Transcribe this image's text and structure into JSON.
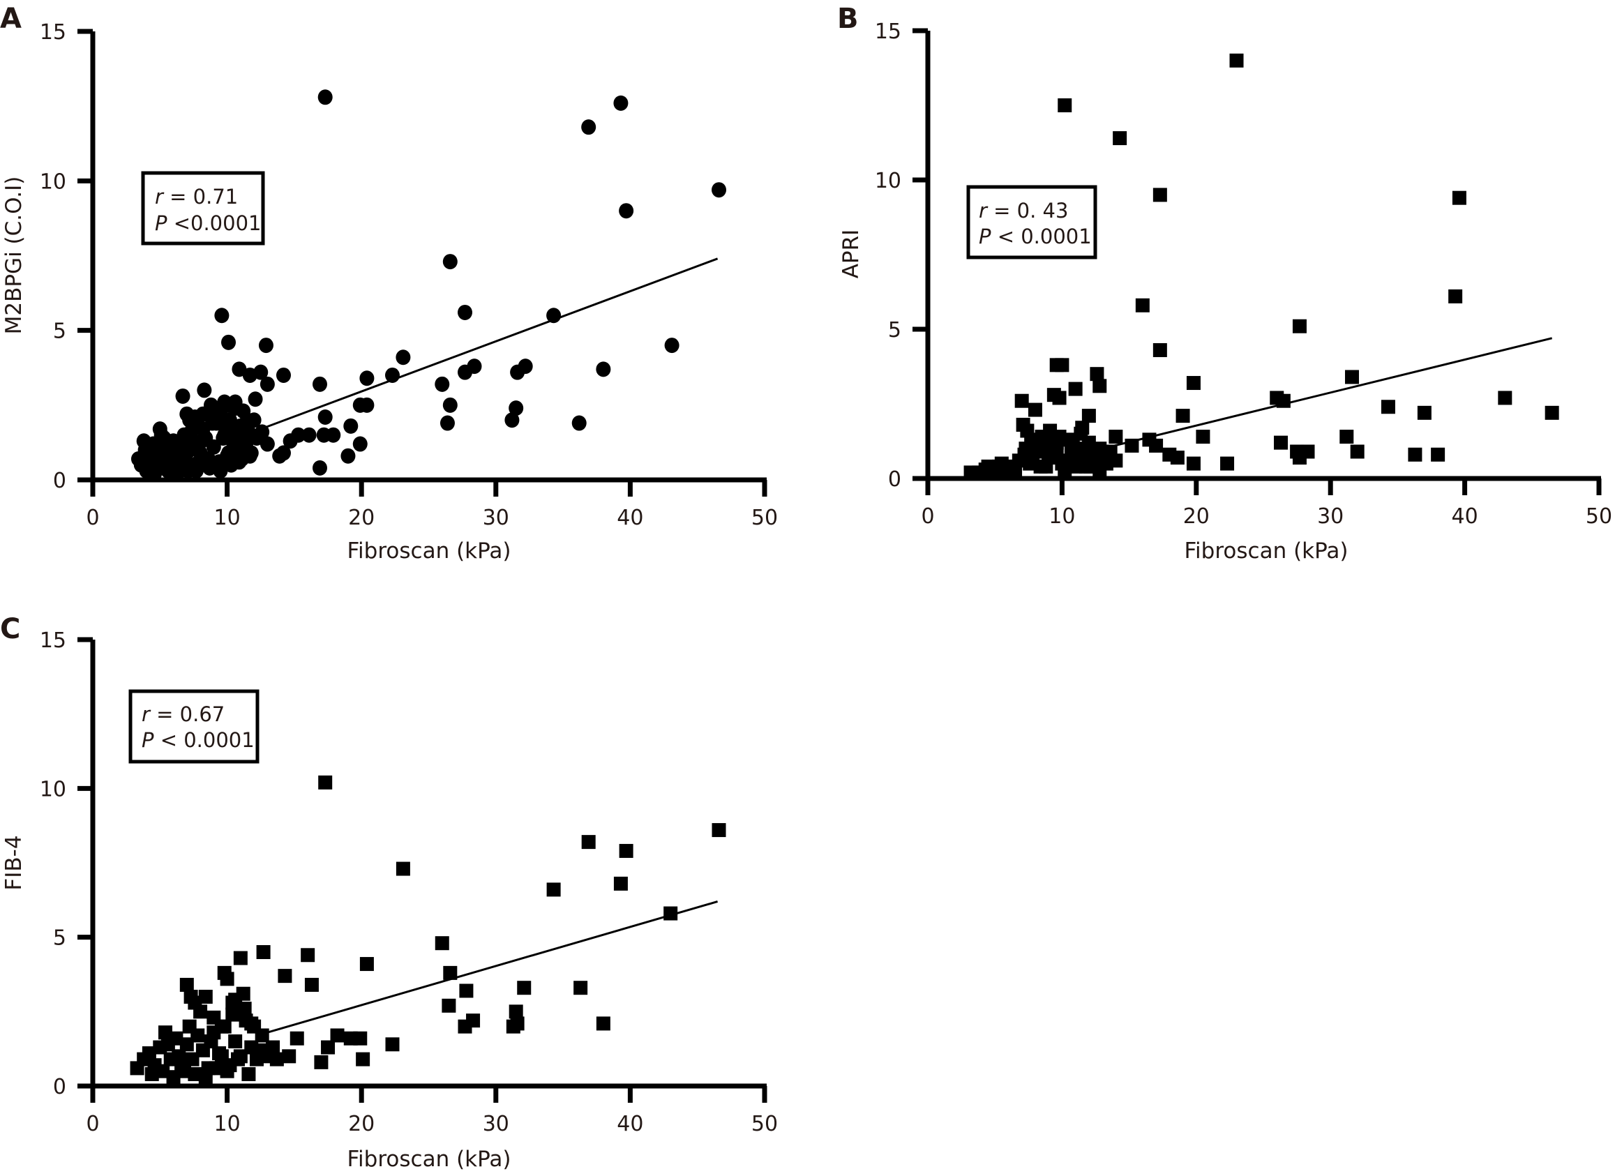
{
  "chart_data": [
    {
      "panel": "A",
      "type": "scatter",
      "marker": "circle",
      "title": "",
      "xlabel": "Fibroscan (kPa)",
      "ylabel": "M2BPGi (C.O.I)",
      "xlim": [
        0,
        50
      ],
      "ylim": [
        0,
        15
      ],
      "xticks": [
        0,
        10,
        20,
        30,
        40,
        50
      ],
      "yticks": [
        0,
        5,
        10,
        15
      ],
      "grid": false,
      "annotation": {
        "r_label": "r",
        "r_text": "= 0.71",
        "p_label": "P",
        "p_text": "<0.0001"
      },
      "annotation_placement": "top-left",
      "regression": {
        "x": [
          12.5,
          46.5
        ],
        "y": [
          1.7,
          7.4
        ]
      },
      "x": [
        17.3,
        36.9,
        39.3,
        46.6,
        39.7,
        26.6,
        27.7,
        34.3,
        43.1,
        38.0,
        9.6,
        10.1,
        12.9,
        23.1,
        32.2,
        28.4,
        31.6,
        27.7,
        26.0,
        22.3,
        20.4,
        20.4,
        19.9,
        31.5,
        31.2,
        26.6,
        26.4,
        36.2,
        16.9,
        17.3,
        16.9,
        19.0,
        19.9,
        19.2,
        17.9,
        17.2,
        16.1,
        15.3,
        14.7,
        14.2,
        13.9,
        13.0,
        14.2,
        13.0,
        12.5,
        11.7,
        10.9,
        9.8,
        12.1,
        3.4,
        3.6,
        3.9,
        4.1,
        4.3,
        4.5,
        4.7,
        4.9,
        5.0,
        5.2,
        5.4,
        5.6,
        5.8,
        6.0,
        6.2,
        6.4,
        6.6,
        6.8,
        7.0,
        7.2,
        7.4,
        7.6,
        7.8,
        8.0,
        8.2,
        8.4,
        8.6,
        8.8,
        9.0,
        9.2,
        9.4,
        9.6,
        9.8,
        10.0,
        10.2,
        10.4,
        10.6,
        10.8,
        11.0,
        11.2,
        11.4,
        11.6,
        11.8,
        12.0,
        12.2,
        12.6,
        4.0,
        4.4,
        4.8,
        5.3,
        5.7,
        6.1,
        6.5,
        6.9,
        7.3,
        7.7,
        8.1,
        8.5,
        8.9,
        9.3,
        9.7,
        10.1,
        10.5,
        10.9,
        11.3,
        11.7,
        3.8,
        4.6,
        5.5,
        6.3,
        7.1,
        7.9,
        8.7,
        9.5,
        10.3,
        11.1,
        5.1,
        6.7,
        7.5,
        8.3,
        9.1,
        9.9,
        10.7,
        11.5,
        7.0,
        7.6,
        8.2,
        8.8,
        9.4,
        10.0,
        10.6
      ],
      "y": [
        12.8,
        11.8,
        12.6,
        9.7,
        9.0,
        7.3,
        5.6,
        5.5,
        4.5,
        3.7,
        5.5,
        4.6,
        4.5,
        4.1,
        3.8,
        3.8,
        3.6,
        3.6,
        3.2,
        3.5,
        2.5,
        3.4,
        2.5,
        2.4,
        2.0,
        2.5,
        1.9,
        1.9,
        3.2,
        2.1,
        0.4,
        0.8,
        1.2,
        1.8,
        1.5,
        1.5,
        1.5,
        1.5,
        1.3,
        0.9,
        0.8,
        1.2,
        3.5,
        3.2,
        3.6,
        3.5,
        3.7,
        2.6,
        2.7,
        0.7,
        0.5,
        1.0,
        0.8,
        0.4,
        1.2,
        0.6,
        0.9,
        1.7,
        0.5,
        1.1,
        0.3,
        0.8,
        1.3,
        0.6,
        1.0,
        0.4,
        1.5,
        0.9,
        2.0,
        1.2,
        0.5,
        1.8,
        0.9,
        2.2,
        1.4,
        0.7,
        2.5,
        1.1,
        1.9,
        0.6,
        2.4,
        1.5,
        0.8,
        2.0,
        1.3,
        2.6,
        1.0,
        1.8,
        2.3,
        1.2,
        1.6,
        0.9,
        2.0,
        1.4,
        1.6,
        0.3,
        0.9,
        0.5,
        1.4,
        0.8,
        0.4,
        1.1,
        0.6,
        1.6,
        0.3,
        1.3,
        0.7,
        1.9,
        0.5,
        1.4,
        0.9,
        1.7,
        0.6,
        1.2,
        0.8,
        1.3,
        0.2,
        0.4,
        0.2,
        0.3,
        0.6,
        0.4,
        0.3,
        0.5,
        0.7,
        1.5,
        2.8,
        1.2,
        3.0,
        2.2,
        1.9,
        1.5,
        2.0,
        2.2,
        2.1,
        1.7,
        2.3,
        2.1,
        2.5,
        2.4
      ]
    },
    {
      "panel": "B",
      "type": "scatter",
      "marker": "square",
      "title": "",
      "xlabel": "Fibroscan (kPa)",
      "ylabel": "APRI",
      "xlim": [
        0,
        50
      ],
      "ylim": [
        0,
        15
      ],
      "xticks": [
        0,
        10,
        20,
        30,
        40,
        50
      ],
      "yticks": [
        0,
        5,
        10,
        15
      ],
      "grid": false,
      "annotation": {
        "r_label": "r",
        "r_text": "= 0. 43",
        "p_label": "P",
        "p_text": "< 0.0001"
      },
      "annotation_placement": "top-left",
      "regression": {
        "x": [
          13.0,
          46.5
        ],
        "y": [
          1.0,
          4.7
        ]
      },
      "x": [
        23.0,
        10.2,
        14.3,
        17.3,
        39.6,
        39.3,
        16.0,
        27.7,
        17.3,
        9.6,
        10.0,
        12.6,
        12.8,
        11.0,
        9.4,
        9.8,
        19.8,
        7.0,
        8.0,
        12.0,
        31.6,
        26.0,
        26.5,
        37.0,
        43.0,
        46.5,
        34.3,
        19.0,
        20.5,
        31.2,
        32.0,
        26.3,
        27.5,
        28.3,
        27.7,
        36.3,
        38.0,
        22.3,
        16.5,
        17.0,
        18.0,
        18.6,
        19.8,
        15.2,
        14.0,
        11.5,
        3.2,
        3.8,
        4.3,
        4.8,
        5.3,
        5.8,
        6.3,
        6.8,
        7.2,
        7.6,
        8.0,
        8.4,
        8.8,
        9.2,
        9.6,
        10.0,
        10.4,
        10.8,
        11.2,
        11.6,
        12.0,
        12.4,
        12.8,
        13.2,
        13.6,
        14.0,
        4.5,
        5.5,
        6.5,
        7.3,
        7.8,
        8.3,
        8.8,
        9.3,
        9.8,
        10.3,
        10.8,
        11.3,
        11.8,
        12.3,
        12.8,
        13.3,
        7.4,
        7.9,
        8.5,
        9.0,
        9.6,
        10.2,
        10.7,
        11.4,
        12.1,
        12.9,
        7.1,
        7.7,
        8.2,
        9.1,
        10.1,
        11.0
      ],
      "y": [
        14.0,
        12.5,
        11.4,
        9.5,
        9.4,
        6.1,
        5.8,
        5.1,
        4.3,
        3.8,
        3.8,
        3.5,
        3.1,
        3.0,
        2.8,
        2.7,
        3.2,
        2.6,
        2.3,
        2.1,
        3.4,
        2.7,
        2.6,
        2.2,
        2.7,
        2.2,
        2.4,
        2.1,
        1.4,
        1.4,
        0.9,
        1.2,
        0.9,
        0.9,
        0.7,
        0.8,
        0.8,
        0.5,
        1.3,
        1.1,
        0.8,
        0.7,
        0.5,
        1.1,
        1.4,
        1.7,
        0.2,
        0.2,
        0.3,
        0.3,
        0.4,
        0.3,
        0.4,
        0.6,
        0.8,
        0.5,
        0.9,
        0.4,
        1.2,
        0.7,
        1.0,
        0.5,
        1.3,
        0.6,
        1.0,
        0.8,
        1.2,
        0.6,
        1.0,
        0.7,
        0.9,
        0.6,
        0.4,
        0.5,
        0.3,
        1.0,
        0.6,
        1.2,
        0.4,
        0.9,
        1.4,
        0.5,
        1.1,
        0.7,
        0.4,
        0.9,
        0.3,
        0.5,
        1.6,
        1.1,
        1.4,
        0.8,
        1.2,
        0.3,
        0.9,
        1.5,
        0.4,
        0.7,
        1.8,
        1.3,
        1.0,
        1.6,
        0.6,
        0.4
      ]
    },
    {
      "panel": "C",
      "type": "scatter",
      "marker": "square",
      "title": "",
      "xlabel": "Fibroscan (kPa)",
      "ylabel": "FIB-4",
      "xlim": [
        0,
        50
      ],
      "ylim": [
        0,
        15
      ],
      "xticks": [
        0,
        10,
        20,
        30,
        40,
        50
      ],
      "yticks": [
        0,
        5,
        10,
        15
      ],
      "grid": false,
      "annotation": {
        "r_label": "r",
        "r_text": "= 0.67",
        "p_label": "P",
        "p_text": "< 0.0001"
      },
      "annotation_placement": "top-left",
      "regression": {
        "x": [
          13.0,
          46.5
        ],
        "y": [
          1.8,
          6.2
        ]
      },
      "x": [
        17.3,
        46.6,
        36.9,
        39.7,
        23.1,
        39.3,
        34.3,
        43.0,
        26.0,
        12.7,
        16.0,
        11.0,
        20.4,
        26.6,
        14.3,
        16.3,
        9.8,
        10.0,
        36.3,
        32.1,
        27.8,
        26.5,
        28.3,
        27.7,
        31.5,
        31.6,
        38.0,
        31.3,
        22.3,
        19.9,
        20.1,
        19.2,
        18.2,
        17.5,
        17.0,
        15.2,
        14.6,
        13.7,
        12.7,
        11.8,
        11.3,
        10.6,
        3.3,
        3.8,
        4.2,
        4.6,
        5.0,
        5.4,
        5.8,
        6.2,
        6.6,
        7.0,
        7.4,
        7.8,
        8.2,
        8.6,
        9.0,
        9.4,
        9.8,
        10.2,
        10.6,
        11.0,
        11.4,
        11.8,
        12.2,
        12.6,
        13.0,
        13.4,
        4.4,
        5.2,
        6.0,
        6.8,
        7.6,
        8.4,
        9.2,
        10.0,
        10.8,
        11.6,
        12.4,
        7.0,
        7.3,
        7.6,
        8.0,
        8.4,
        9.0,
        9.6,
        10.4,
        11.2,
        12.0,
        5.6,
        6.4,
        7.2,
        8.8,
        9.6,
        10.4
      ],
      "y": [
        10.2,
        8.6,
        8.2,
        7.9,
        7.3,
        6.8,
        6.6,
        5.8,
        4.8,
        4.5,
        4.4,
        4.3,
        4.1,
        3.8,
        3.7,
        3.4,
        3.8,
        3.6,
        3.3,
        3.3,
        3.2,
        2.7,
        2.2,
        2.0,
        2.5,
        2.1,
        2.1,
        2.0,
        1.4,
        1.6,
        0.9,
        1.6,
        1.7,
        1.3,
        0.8,
        1.6,
        1.0,
        0.9,
        1.0,
        2.1,
        2.6,
        2.9,
        0.6,
        0.9,
        1.1,
        0.7,
        1.3,
        1.8,
        0.9,
        1.6,
        0.6,
        1.4,
        0.9,
        1.7,
        1.2,
        0.6,
        1.8,
        1.1,
        2.0,
        0.7,
        1.5,
        1.0,
        2.2,
        1.3,
        0.9,
        1.7,
        1.1,
        1.3,
        0.4,
        0.5,
        0.3,
        0.5,
        0.4,
        0.3,
        0.6,
        0.5,
        0.9,
        0.4,
        1.2,
        3.4,
        3.0,
        2.8,
        2.5,
        3.0,
        2.3,
        2.0,
        2.8,
        3.1,
        2.0,
        1.4,
        1.0,
        2.0,
        1.5,
        1.0,
        2.4
      ]
    }
  ]
}
